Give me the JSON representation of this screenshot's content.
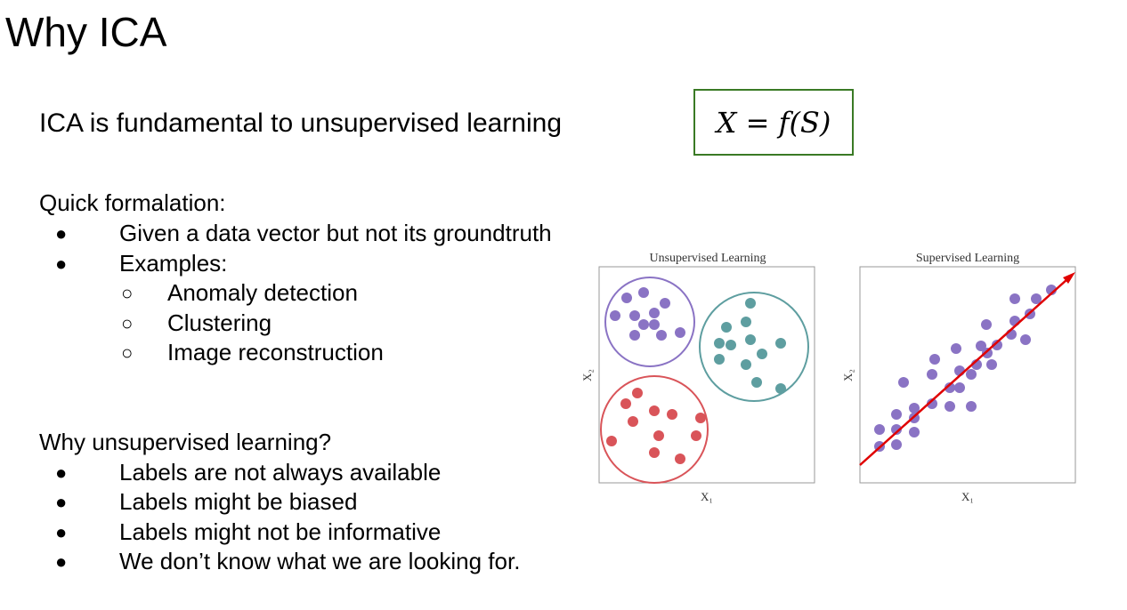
{
  "slide": {
    "title": "Why ICA",
    "headline": "ICA is fundamental to unsupervised learning",
    "formula": "X = f(S)"
  },
  "formalation": {
    "heading": "Quick formalation:",
    "bullets": [
      "Given a data vector but not its groundtruth",
      "Examples:"
    ],
    "sub_bullets": [
      "Anomaly detection",
      "Clustering",
      "Image reconstruction"
    ]
  },
  "why": {
    "heading": "Why unsupervised learning?",
    "bullets": [
      "Labels are not always available",
      "Labels might be biased",
      "Labels might not be informative",
      "We don’t know what we are looking for."
    ]
  },
  "markers": {
    "bullet": "●",
    "sub_bullet": "○"
  },
  "colors": {
    "purple": "#8a73c4",
    "teal": "#5e9ea0",
    "red": "#d95459",
    "arrow": "#e00000",
    "box_border": "#3a7a25"
  },
  "figure": {
    "unsupervised": {
      "title": "Unsupervised Learning",
      "xlabel": "X₁",
      "ylabel": "X₂"
    },
    "supervised": {
      "title": "Supervised Learning",
      "xlabel": "X₁",
      "ylabel": "X₂"
    }
  }
}
